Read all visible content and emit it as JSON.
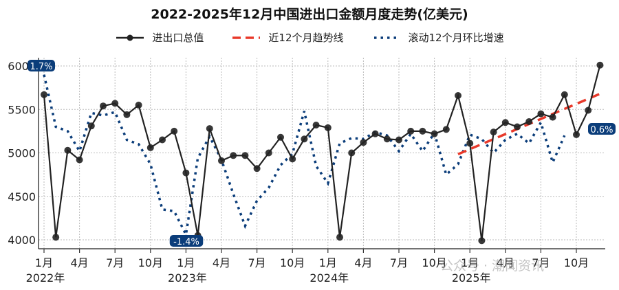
{
  "title": "2022-2025年12月中国进出口金额月度走势(亿美元)",
  "legend": [
    {
      "label": "进出口总值",
      "style": "line-marker",
      "color": "#222222"
    },
    {
      "label": "近12个月趋势线",
      "style": "dashed",
      "color": "#e8392a"
    },
    {
      "label": "滚动12个月环比增速",
      "style": "dotted",
      "color": "#0b3d7a"
    }
  ],
  "watermark": "公众号 · 潮闻资讯",
  "chart_data": {
    "type": "line",
    "title": "2022-2025年12月中国进出口金额月度走势(亿美元)",
    "xlabel": "",
    "ylabel": "",
    "ylim": [
      3900,
      6100
    ],
    "yticks": [
      4000,
      4500,
      5000,
      5500,
      6000
    ],
    "grid": true,
    "legend_position": "top",
    "x_tick_labels": [
      "1月\n2022年",
      "4月",
      "7月",
      "10月",
      "1月\n2023年",
      "4月",
      "7月",
      "10月",
      "1月\n2024年",
      "4月",
      "7月",
      "10月",
      "1月\n2025年",
      "4月",
      "7月",
      "10月"
    ],
    "x": [
      "2022-01",
      "2022-02",
      "2022-03",
      "2022-04",
      "2022-05",
      "2022-06",
      "2022-07",
      "2022-08",
      "2022-09",
      "2022-10",
      "2022-11",
      "2022-12",
      "2023-01",
      "2023-02",
      "2023-03",
      "2023-04",
      "2023-05",
      "2023-06",
      "2023-07",
      "2023-08",
      "2023-09",
      "2023-10",
      "2023-11",
      "2023-12",
      "2024-01",
      "2024-02",
      "2024-03",
      "2024-04",
      "2024-05",
      "2024-06",
      "2024-07",
      "2024-08",
      "2024-09",
      "2024-10",
      "2024-11",
      "2024-12",
      "2025-01",
      "2025-02",
      "2025-03",
      "2025-04",
      "2025-05",
      "2025-06",
      "2025-07",
      "2025-08",
      "2025-09",
      "2025-10",
      "2025-11",
      "2025-12"
    ],
    "series": [
      {
        "name": "进出口总值",
        "color": "#222222",
        "values": [
          5670,
          4030,
          5030,
          4920,
          5310,
          5540,
          5570,
          5440,
          5550,
          5060,
          5150,
          5250,
          4770,
          4050,
          5280,
          4910,
          4970,
          4970,
          4820,
          5000,
          5180,
          4930,
          5160,
          5320,
          5290,
          4030,
          5000,
          5120,
          5220,
          5160,
          5150,
          5250,
          5250,
          5220,
          5270,
          5660,
          5110,
          3990,
          5240,
          5350,
          5300,
          5360,
          5450,
          5410,
          5670,
          5210,
          5490,
          6010
        ]
      },
      {
        "name": "近12个月趋势线",
        "color": "#e8392a",
        "x_range": [
          "2024-12",
          "2025-12"
        ],
        "values": [
          4985,
          5680
        ]
      },
      {
        "name": "滚动12个月环比增速",
        "color": "#0b3d7a",
        "values": [
          5900,
          5300,
          5250,
          5020,
          5460,
          5430,
          5470,
          5150,
          5100,
          4870,
          4350,
          4330,
          4060,
          4940,
          5190,
          4920,
          4530,
          4160,
          4450,
          4600,
          4860,
          4990,
          5480,
          4850,
          4650,
          5110,
          5170,
          5160,
          5240,
          5200,
          5020,
          5220,
          5020,
          5230,
          4750,
          4870,
          5210,
          5160,
          5000,
          5150,
          5220,
          5110,
          5350,
          4890,
          5200,
          null,
          null,
          null
        ]
      }
    ],
    "annotations": [
      {
        "text": "1.7%",
        "at": "2022-01",
        "series": "滚动12个月环比增速"
      },
      {
        "text": "-1.4%",
        "at": "2023-01",
        "series": "滚动12个月环比增速"
      },
      {
        "text": "0.6%",
        "at": "2025-09",
        "series": "滚动12个月环比增速"
      }
    ]
  }
}
